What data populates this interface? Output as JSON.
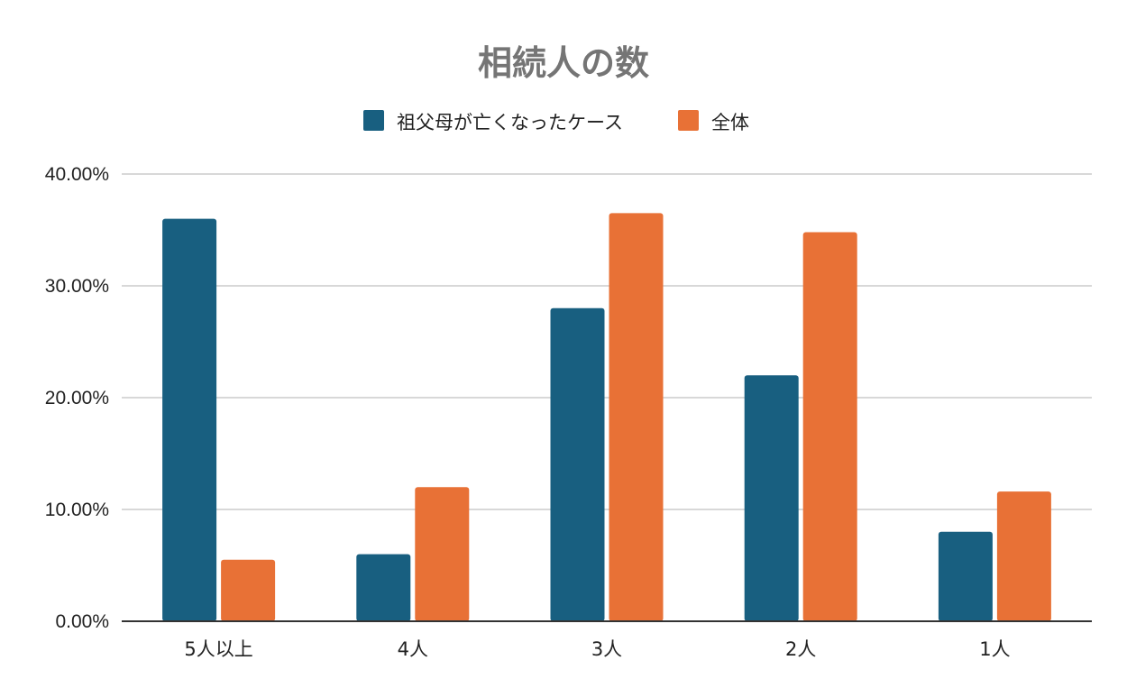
{
  "chart_data": {
    "type": "bar",
    "title": "相続人の数",
    "categories": [
      "5人以上",
      "4人",
      "3人",
      "2人",
      "1人"
    ],
    "series": [
      {
        "name": "祖父母が亡くなったケース",
        "color": "#185f80",
        "values": [
          0.36,
          0.06,
          0.28,
          0.22,
          0.08
        ]
      },
      {
        "name": "全体",
        "color": "#e87136",
        "values": [
          0.055,
          0.12,
          0.365,
          0.348,
          0.116
        ]
      }
    ],
    "ylim": [
      0,
      0.4
    ],
    "yticks": [
      "0.00%",
      "10.00%",
      "20.00%",
      "30.00%",
      "40.00%"
    ],
    "ytick_values": [
      0,
      0.1,
      0.2,
      0.3,
      0.4
    ],
    "xlabel": "",
    "ylabel": "",
    "grid": true,
    "legend": "top-center"
  }
}
